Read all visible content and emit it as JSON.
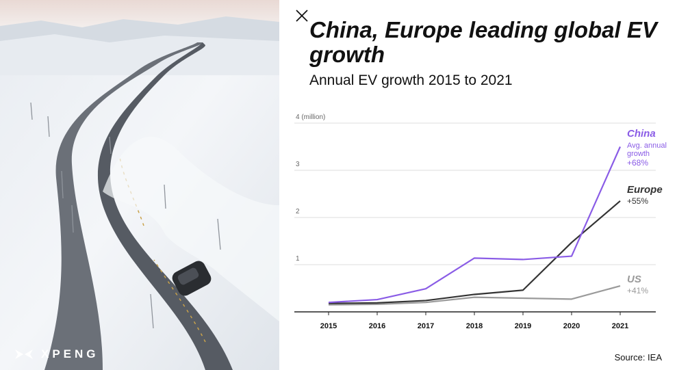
{
  "page": {
    "brand": "XPENG",
    "title": "China, Europe leading global EV growth",
    "subtitle": "Annual EV growth 2015 to 2021",
    "source": "Source: IEA"
  },
  "colors": {
    "china": "#8a5ce6",
    "europe": "#333333",
    "us": "#9a9a9a",
    "grid": "#dcdcdc",
    "axis": "#222222"
  },
  "chart_data": {
    "type": "line",
    "x": [
      "2015",
      "2016",
      "2017",
      "2018",
      "2019",
      "2020",
      "2021"
    ],
    "ylim": [
      0,
      4
    ],
    "yticks": [
      1,
      2,
      3,
      4
    ],
    "ytick_labels": [
      "1",
      "2",
      "3",
      "4 (million)"
    ],
    "grid": true,
    "series": [
      {
        "name": "China",
        "note": "Avg. annual growth",
        "growth": "+68%",
        "color": "#8a5ce6",
        "values": [
          0.2,
          0.26,
          0.49,
          1.14,
          1.11,
          1.18,
          3.5
        ]
      },
      {
        "name": "Europe",
        "note": "",
        "growth": "+55%",
        "color": "#333333",
        "values": [
          0.18,
          0.19,
          0.24,
          0.37,
          0.46,
          1.47,
          2.35
        ]
      },
      {
        "name": "US",
        "note": "",
        "growth": "+41%",
        "color": "#9a9a9a",
        "values": [
          0.15,
          0.16,
          0.2,
          0.31,
          0.29,
          0.27,
          0.55
        ]
      }
    ]
  }
}
